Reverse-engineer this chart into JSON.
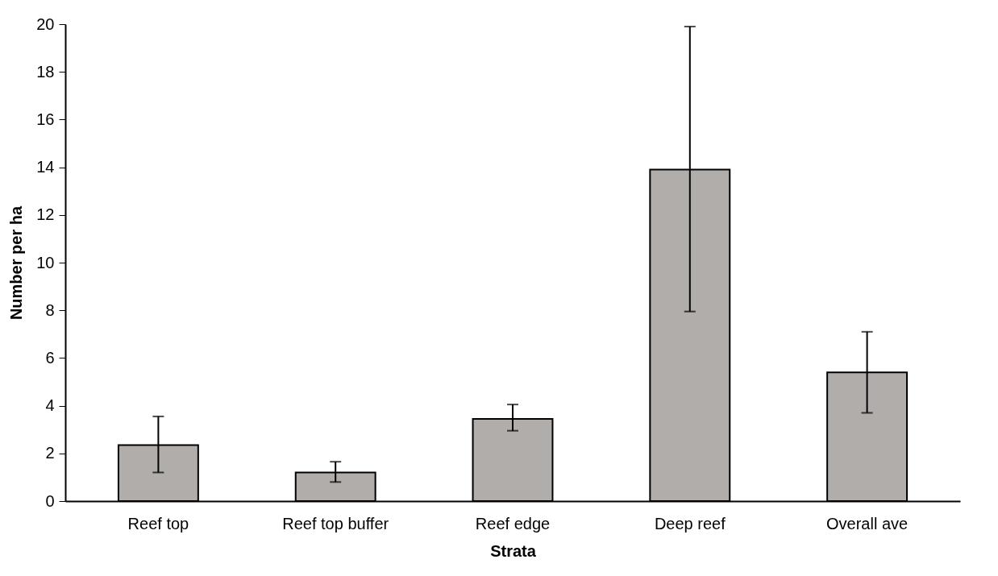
{
  "chart_data": {
    "type": "bar",
    "xlabel": "Strata",
    "ylabel": "Number per ha",
    "categories": [
      "Reef top",
      "Reef top buffer",
      "Reef edge",
      "Deep reef",
      "Overall ave"
    ],
    "values": [
      2.35,
      1.2,
      3.45,
      13.9,
      5.4
    ],
    "errors": [
      [
        1.2,
        3.55
      ],
      [
        0.8,
        1.65
      ],
      [
        2.95,
        4.05
      ],
      [
        7.95,
        19.9
      ],
      [
        3.7,
        7.1
      ]
    ],
    "color": "#b0adab",
    "ylim": [
      0,
      20
    ],
    "yticks": [
      0,
      2,
      4,
      6,
      8,
      10,
      12,
      14,
      16,
      18,
      20
    ],
    "grid": false
  }
}
